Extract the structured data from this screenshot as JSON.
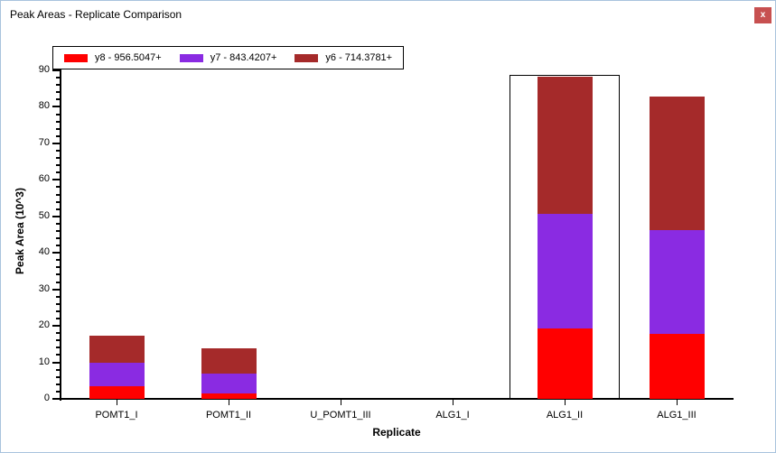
{
  "window": {
    "title": "Peak Areas - Replicate Comparison",
    "close_label": "x",
    "close_color": "#c75050"
  },
  "chart_data": {
    "type": "bar",
    "stacked": true,
    "xlabel": "Replicate",
    "ylabel": "Peak Area (10^3)",
    "ylim": [
      0,
      90
    ],
    "y_ticks": [
      0,
      10,
      20,
      30,
      40,
      50,
      60,
      70,
      80,
      90
    ],
    "y_minor_step": 2,
    "grid": false,
    "legend_position": "top-left",
    "categories": [
      "POMT1_I",
      "POMT1_II",
      "U_POMT1_III",
      "ALG1_I",
      "ALG1_II",
      "ALG1_III"
    ],
    "series": [
      {
        "name": "y8 - 956.5047+",
        "color": "#ff0000",
        "values": [
          3.5,
          1.5,
          0,
          0,
          19.3,
          17.8
        ]
      },
      {
        "name": "y7 - 843.4207+",
        "color": "#8a2be2",
        "values": [
          6.5,
          5.4,
          0,
          0,
          31.4,
          28.4
        ]
      },
      {
        "name": "y6 - 714.3781+",
        "color": "#a52a2a",
        "values": [
          7.2,
          6.9,
          0,
          0,
          37.6,
          36.6
        ]
      }
    ],
    "totals": [
      17.2,
      13.8,
      0,
      0,
      88.3,
      82.8
    ],
    "selected_category": "ALG1_II"
  }
}
